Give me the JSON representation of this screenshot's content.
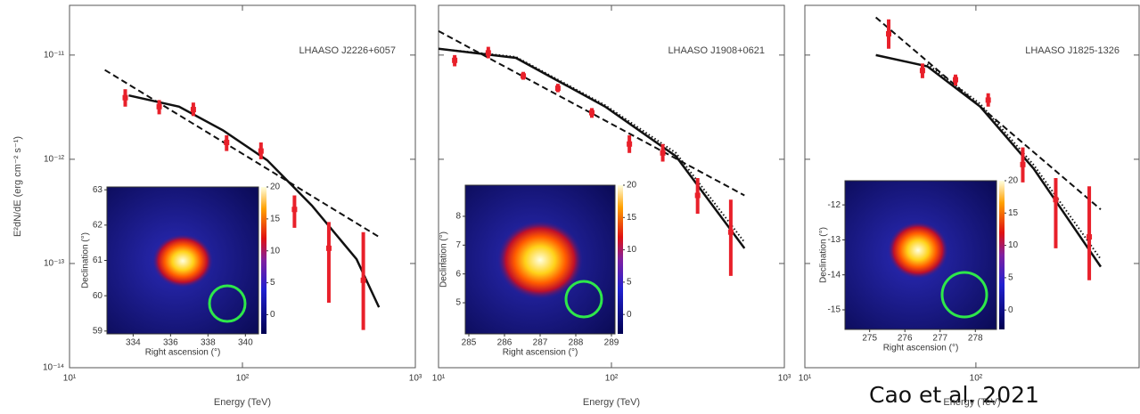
{
  "chart_data": [
    {
      "type": "scatter",
      "title": "LHAASO J2226+6057",
      "xlabel": "Energy (TeV)",
      "ylabel": "E²dN/dE (erg cm⁻² s⁻¹)",
      "log_x": true,
      "log_y": true,
      "color": "#e8202a",
      "xlim": [
        10,
        1000
      ],
      "ylim": [
        1e-14,
        3e-11
      ],
      "xticks": [
        {
          "value": 10,
          "label": "10¹"
        },
        {
          "value": 100,
          "label": "10²"
        },
        {
          "value": 1000,
          "label": "10³"
        }
      ],
      "yticks": [
        {
          "value": 1e-14,
          "label": "10⁻¹⁴"
        },
        {
          "value": 1e-13,
          "label": "10⁻¹³"
        },
        {
          "value": 1e-12,
          "label": "10⁻¹²"
        },
        {
          "value": 1e-11,
          "label": "10⁻¹¹"
        }
      ],
      "x": [
        21,
        33,
        52,
        81,
        128,
        200,
        316,
        500
      ],
      "values": [
        3.9e-12,
        3.2e-12,
        3e-12,
        1.45e-12,
        1.2e-12,
        3.3e-13,
        1.4e-13,
        6.9e-14
      ],
      "lower": [
        3.2e-12,
        2.7e-12,
        2.6e-12,
        1.2e-12,
        1e-12,
        2.2e-13,
        4.2e-14,
        2.3e-14
      ],
      "upper": [
        4.7e-12,
        3.7e-12,
        3.5e-12,
        1.7e-12,
        1.45e-12,
        4.5e-13,
        2.5e-13,
        2e-13
      ],
      "curves": [
        {
          "style": "solid",
          "x": [
            22,
            43,
            77,
            139,
            252,
            457,
            616
          ],
          "y": [
            4.1e-12,
            3.2e-12,
            1.9e-12,
            9.8e-13,
            3.6e-13,
            1.1e-13,
            3.8e-14
          ]
        },
        {
          "style": "dashed",
          "x": [
            16,
            616
          ],
          "y": [
            7.2e-12,
            1.8e-13
          ]
        }
      ],
      "inset": {
        "xlabel": "Right ascension (°)",
        "ylabel": "Declination (°)",
        "xlim": [
          332.6,
          340.7
        ],
        "xticks": [
          334,
          336,
          338,
          340
        ],
        "ylim": [
          58.92,
          63.08
        ],
        "yticks": [
          59,
          60,
          61,
          62,
          63
        ],
        "colorbar_lim": [
          -3,
          20
        ],
        "colorbar_ticks": [
          0,
          5,
          10,
          15,
          20
        ]
      }
    },
    {
      "type": "scatter",
      "title": "LHAASO J1908+0621",
      "xlabel": "Energy (TeV)",
      "log_x": true,
      "log_y": true,
      "color": "#e8202a",
      "xlim": [
        10,
        1000
      ],
      "ylim": [
        1e-14,
        3e-11
      ],
      "xticks": [
        {
          "value": 10,
          "label": "10¹"
        },
        {
          "value": 100,
          "label": "10²"
        },
        {
          "value": 1000,
          "label": "10³"
        }
      ],
      "yticks": [
        1e-14,
        1e-13,
        1e-12,
        1e-11
      ],
      "x": [
        12.4,
        19.4,
        30.9,
        49,
        77,
        127,
        198,
        315,
        490
      ],
      "values": [
        8.9e-12,
        1.05e-11,
        6.3e-12,
        4.8e-12,
        2.8e-12,
        1.4e-12,
        1.15e-12,
        4.5e-13,
        2e-13
      ],
      "lower": [
        7.8e-12,
        9.3e-12,
        5.8e-12,
        4.4e-12,
        2.5e-12,
        1.15e-12,
        9.5e-13,
        3e-13,
        7.6e-14
      ],
      "upper": [
        1e-11,
        1.2e-11,
        6.9e-12,
        5.3e-12,
        3.1e-12,
        1.7e-12,
        1.4e-12,
        6.6e-13,
        4.1e-13
      ],
      "curves": [
        {
          "style": "solid",
          "x": [
            10,
            28,
            92,
            236,
            588
          ],
          "y": [
            1.15e-11,
            9.4e-12,
            3.2e-12,
            1.07e-12,
            1.4e-13
          ]
        },
        {
          "style": "dotted",
          "x": [
            10,
            28,
            92,
            236,
            588
          ],
          "y": [
            1.15e-11,
            9.6e-12,
            3.3e-12,
            1.15e-12,
            1.6e-13
          ]
        },
        {
          "style": "dashed",
          "x": [
            10,
            588
          ],
          "y": [
            1.7e-11,
            4.5e-13
          ]
        }
      ],
      "inset": {
        "xlabel": "Right ascension (°)",
        "ylabel": "Declination (°)",
        "xlim": [
          284.9,
          289.1
        ],
        "xticks": [
          285,
          286,
          287,
          288,
          289
        ],
        "ylim": [
          3.92,
          9.08
        ],
        "yticks": [
          5,
          6,
          7,
          8
        ],
        "colorbar_lim": [
          -3,
          20
        ],
        "colorbar_ticks": [
          0,
          5,
          10,
          15,
          20
        ]
      }
    },
    {
      "type": "scatter",
      "title": "LHAASO J1825-1326",
      "xlabel": "Energy (TeV)",
      "log_x": true,
      "log_y": true,
      "color": "#e8202a",
      "xlim": [
        10,
        900
      ],
      "ylim": [
        1e-14,
        3e-11
      ],
      "xticks": [
        {
          "value": 10,
          "label": "10¹"
        },
        {
          "value": 100,
          "label": "10²"
        }
      ],
      "yticks": [
        1e-14,
        1e-13,
        1e-12,
        1e-11
      ],
      "x": [
        30.9,
        48.7,
        76,
        118,
        188,
        293,
        460
      ],
      "values": [
        1.6e-11,
        7.1e-12,
        5.8e-12,
        3.7e-12,
        8.9e-13,
        4.1e-13,
        1.8e-13
      ],
      "lower": [
        1.15e-11,
        6e-12,
        5.1e-12,
        3.2e-12,
        6e-13,
        1.4e-13,
        6.9e-14
      ],
      "upper": [
        2.2e-11,
        8.3e-12,
        6.5e-12,
        4.3e-12,
        1.3e-12,
        6.6e-13,
        5.5e-13
      ],
      "curves": [
        {
          "style": "solid",
          "x": [
            26,
            52,
            106,
            218,
            537
          ],
          "y": [
            1e-11,
            7.8e-12,
            3.2e-12,
            8.1e-13,
            9.3e-14
          ]
        },
        {
          "style": "dotted",
          "x": [
            52,
            106,
            218,
            537
          ],
          "y": [
            8.2e-12,
            3.4e-12,
            8.8e-13,
            1.1e-13
          ]
        },
        {
          "style": "dashed",
          "x": [
            26,
            537
          ],
          "y": [
            2.3e-11,
            3.3e-13
          ]
        }
      ],
      "inset": {
        "xlabel": "Right ascension (°)",
        "ylabel": "Declination (°)",
        "xlim": [
          274.3,
          278.6
        ],
        "xticks": [
          275,
          276,
          277,
          278
        ],
        "ylim": [
          -15.56,
          -11.31
        ],
        "yticks": [
          -15,
          -14,
          -13,
          -12
        ],
        "colorbar_lim": [
          -3,
          20
        ],
        "colorbar_ticks": [
          0,
          5,
          10,
          15,
          20
        ]
      }
    }
  ],
  "citation": "Cao et al. 2021"
}
